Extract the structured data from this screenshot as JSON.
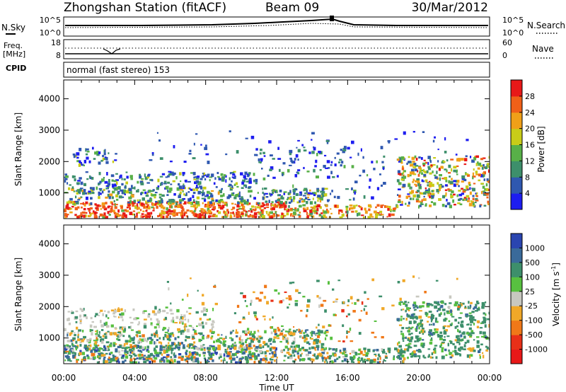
{
  "header": {
    "station": "Zhongshan Station (fitACF)",
    "beam": "Beam 09",
    "date": "30/Mar/2012"
  },
  "top_panels": {
    "nsky": {
      "left_label": "N.Sky",
      "right_label": "N.Search",
      "left_ticks": [
        "10^5",
        "10^0"
      ],
      "right_ticks": [
        "10^5",
        "10^0"
      ]
    },
    "freq": {
      "left_label_1": "Freq.",
      "left_label_2": "[MHz]",
      "right_label": "Nave",
      "left_ticks": [
        "18",
        "8"
      ],
      "right_ticks": [
        "60",
        "0"
      ]
    },
    "cpid": {
      "label": "CPID",
      "text": "normal (fast stereo) 153"
    }
  },
  "chart_data": [
    {
      "type": "heatmap",
      "name": "power-panel",
      "ylabel": "Slant Range [km]",
      "xlabel": "",
      "yticks": [
        "1000",
        "2000",
        "3000",
        "4000"
      ],
      "ylim": [
        180,
        4600
      ],
      "colorbar": {
        "label": "Power [dB]",
        "ticks": [
          "4",
          "8",
          "12",
          "16",
          "20",
          "24",
          "28"
        ],
        "colors": [
          "#1d1df0",
          "#2f58b0",
          "#3d8f6b",
          "#58b048",
          "#c8cc18",
          "#f0a018",
          "#f06018",
          "#e81818"
        ]
      }
    },
    {
      "type": "heatmap",
      "name": "velocity-panel",
      "ylabel": "Slant Range [km]",
      "xlabel": "Time UT",
      "xticks": [
        "00:00",
        "04:00",
        "08:00",
        "12:00",
        "16:00",
        "20:00",
        "00:00"
      ],
      "yticks": [
        "1000",
        "2000",
        "3000",
        "4000"
      ],
      "ylim": [
        180,
        4600
      ],
      "colorbar": {
        "label": "Velocity [m s^-1]",
        "ticks": [
          "1000",
          "500",
          "100",
          "25",
          "-25",
          "-100",
          "-500",
          "-1000"
        ],
        "colors": [
          "#2a45b0",
          "#3a6a9a",
          "#3d8f6b",
          "#58c040",
          "#c8c8c0",
          "#f0a828",
          "#f07818",
          "#e83018",
          "#e81818"
        ]
      }
    }
  ]
}
